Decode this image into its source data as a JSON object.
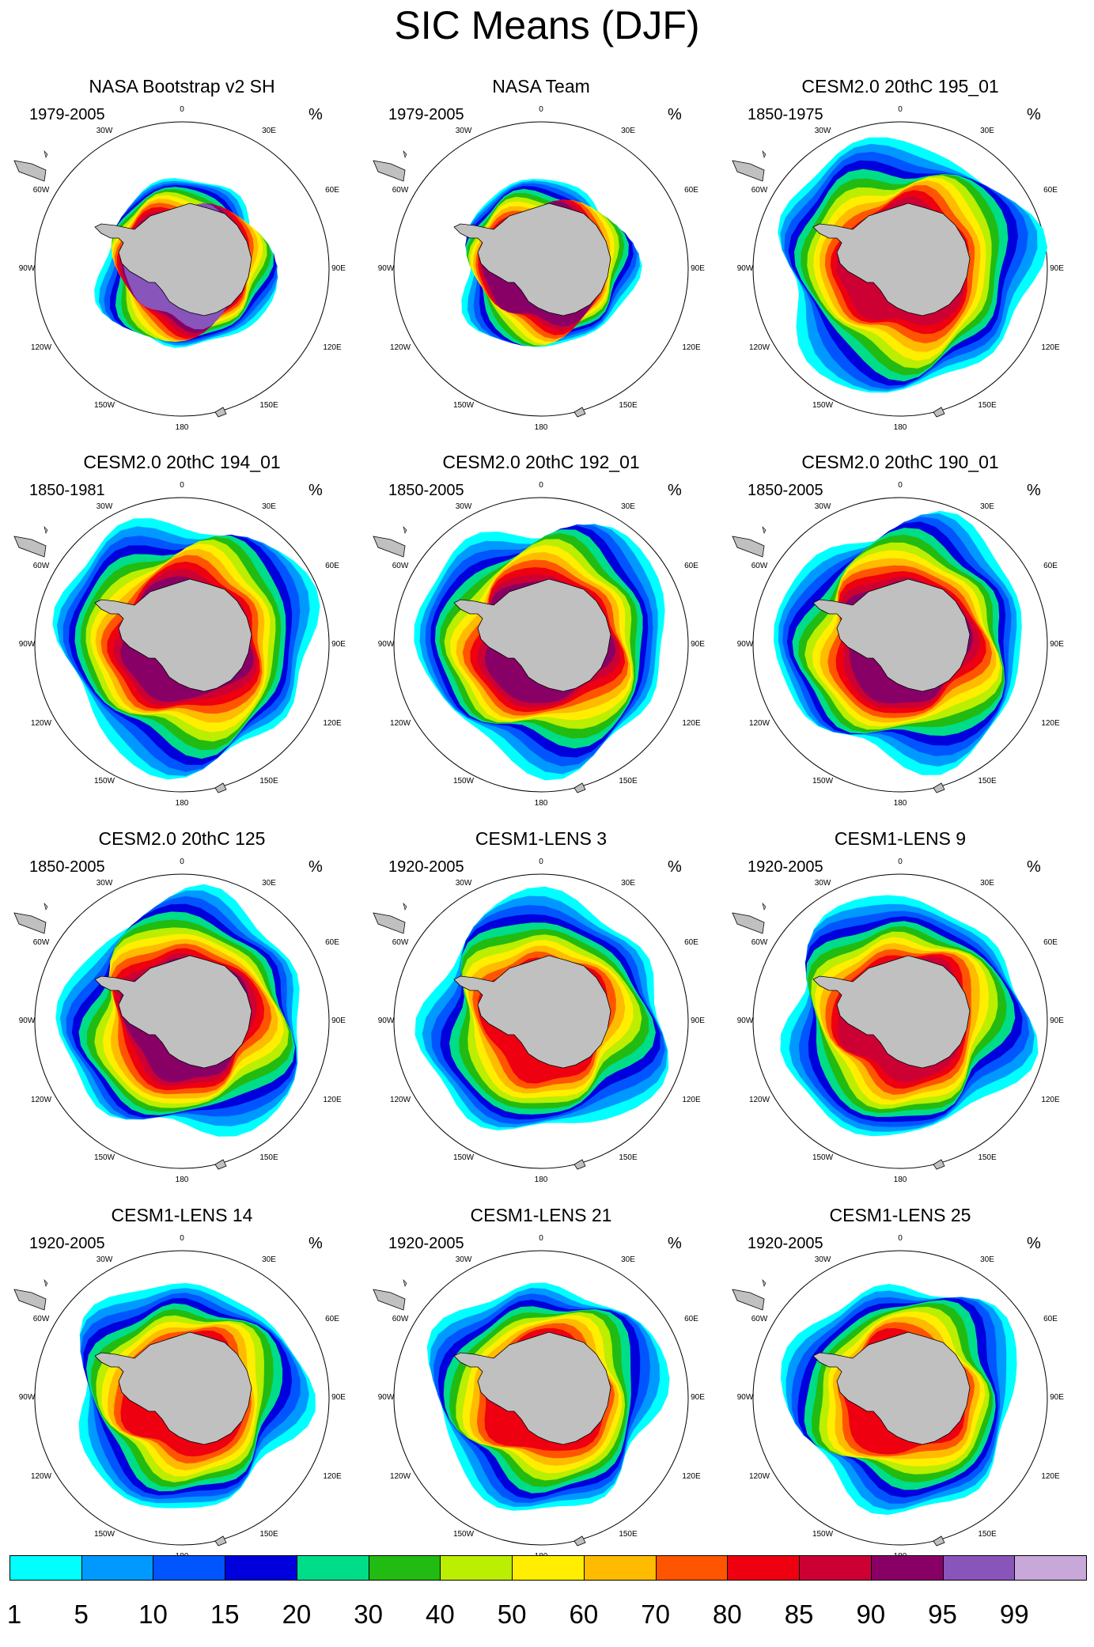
{
  "title": "SIC Means (DJF)",
  "unit": "%",
  "longitude_labels": {
    "top": "0",
    "upper_left": "30W",
    "upper_right": "30E",
    "left_upper": "60W",
    "right_upper": "60E",
    "left_mid": "90W",
    "right_mid": "90E",
    "left_lower": "120W",
    "right_lower": "120E",
    "bottom_left": "150W",
    "bottom_right": "150E",
    "bottom": "180"
  },
  "panels": [
    {
      "title": "NASA Bootstrap v2 SH",
      "period": "1979-2005",
      "extent": 0.58,
      "peak": 95
    },
    {
      "title": "NASA Team",
      "period": "1979-2005",
      "extent": 0.58,
      "peak": 90
    },
    {
      "title": "CESM2.0 20thC 195_01",
      "period": "1850-1975",
      "extent": 0.86,
      "peak": 85
    },
    {
      "title": "CESM2.0 20thC 194_01",
      "period": "1850-1981",
      "extent": 0.86,
      "peak": 90
    },
    {
      "title": "CESM2.0 20thC 192_01",
      "period": "1850-2005",
      "extent": 0.84,
      "peak": 90
    },
    {
      "title": "CESM2.0 20thC 190_01",
      "period": "1850-2005",
      "extent": 0.84,
      "peak": 90
    },
    {
      "title": "CESM2.0 20thC 125",
      "period": "1850-2005",
      "extent": 0.82,
      "peak": 90
    },
    {
      "title": "CESM1-LENS 3",
      "period": "1920-2005",
      "extent": 0.82,
      "peak": 80
    },
    {
      "title": "CESM1-LENS 9",
      "period": "1920-2005",
      "extent": 0.82,
      "peak": 85
    },
    {
      "title": "CESM1-LENS 14",
      "period": "1920-2005",
      "extent": 0.78,
      "peak": 80
    },
    {
      "title": "CESM1-LENS 21",
      "period": "1920-2005",
      "extent": 0.78,
      "peak": 80
    },
    {
      "title": "CESM1-LENS 25",
      "period": "1920-2005",
      "extent": 0.78,
      "peak": 80
    }
  ],
  "colorbar": {
    "levels": [
      "1",
      "5",
      "10",
      "15",
      "20",
      "30",
      "40",
      "50",
      "60",
      "70",
      "80",
      "85",
      "90",
      "95",
      "99"
    ],
    "colors": [
      "#00ffff",
      "#0099ff",
      "#0055ff",
      "#0000dd",
      "#00dd88",
      "#22bb11",
      "#bbee00",
      "#ffee00",
      "#ffbb00",
      "#ff5500",
      "#ee0011",
      "#cc0033",
      "#880066",
      "#8855bb",
      "#c8a8d8"
    ]
  },
  "land_color": "#c0c0c0"
}
